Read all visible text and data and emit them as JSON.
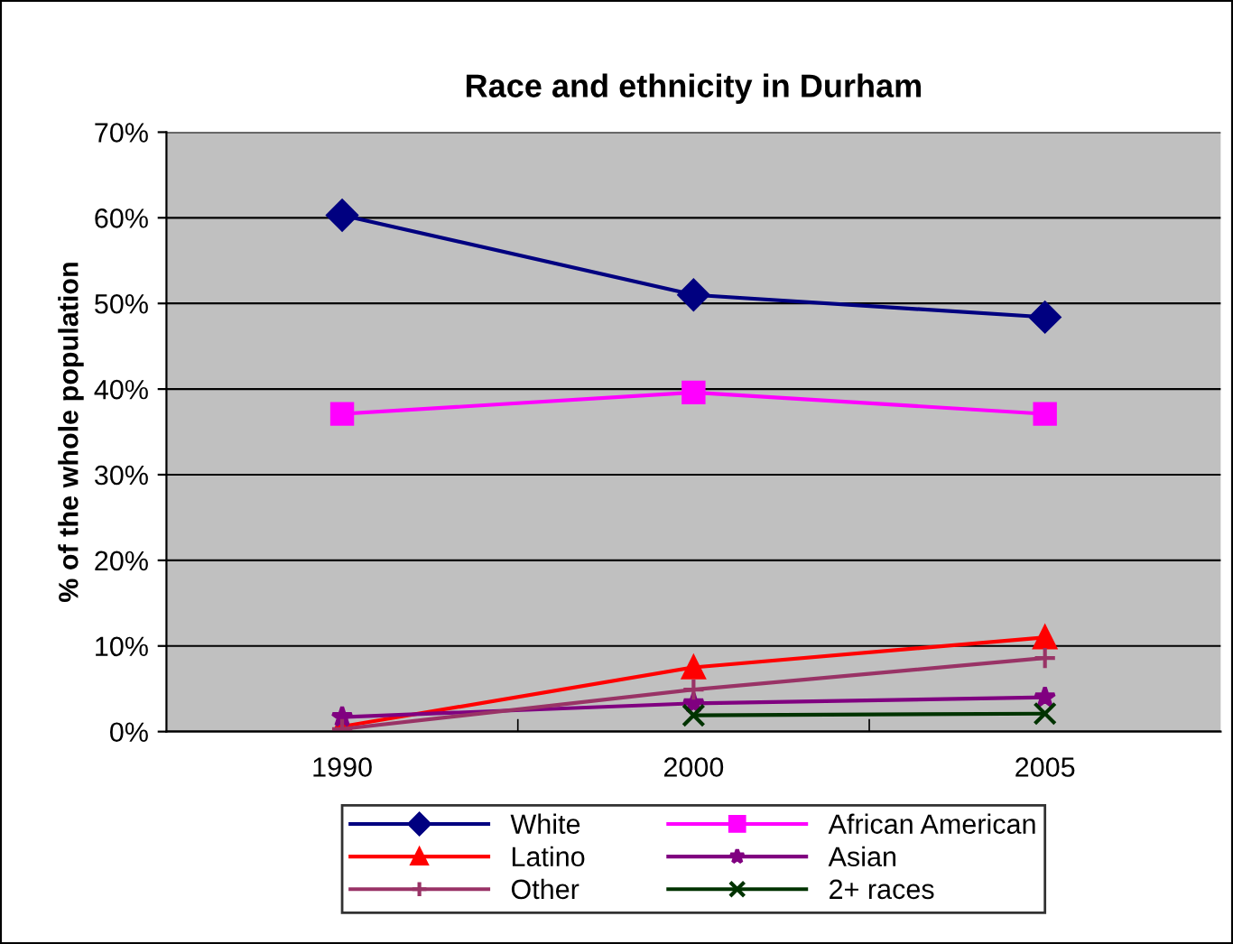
{
  "chart_data": {
    "type": "line",
    "title": "Race and ethnicity in Durham",
    "ylabel": "% of the whole population",
    "categories": [
      "1990",
      "2000",
      "2005"
    ],
    "series": [
      {
        "name": "White",
        "color": "#000080",
        "marker": "diamond",
        "values": [
          60.3,
          51.0,
          48.4
        ]
      },
      {
        "name": "African American",
        "color": "#ff00ff",
        "marker": "square",
        "values": [
          37.1,
          39.6,
          37.1
        ]
      },
      {
        "name": "Latino",
        "color": "#ff0000",
        "marker": "triangle",
        "values": [
          0.6,
          7.5,
          11.0
        ]
      },
      {
        "name": "Asian",
        "color": "#800080",
        "marker": "star",
        "values": [
          1.7,
          3.3,
          4.0
        ]
      },
      {
        "name": "Other",
        "color": "#993366",
        "marker": "plus",
        "values": [
          0.3,
          4.9,
          8.6
        ]
      },
      {
        "name": "2+ races",
        "color": "#003300",
        "marker": "cross",
        "values": [
          null,
          1.9,
          2.1
        ]
      }
    ],
    "ylim": [
      0,
      70
    ],
    "yticks": [
      {
        "value": 0,
        "label": "0%"
      },
      {
        "value": 10,
        "label": "10%"
      },
      {
        "value": 20,
        "label": "20%"
      },
      {
        "value": 30,
        "label": "30%"
      },
      {
        "value": 40,
        "label": "40%"
      },
      {
        "value": 50,
        "label": "50%"
      },
      {
        "value": 60,
        "label": "60%"
      },
      {
        "value": 70,
        "label": "70%"
      }
    ],
    "grid": "y",
    "legend": "bottom"
  }
}
